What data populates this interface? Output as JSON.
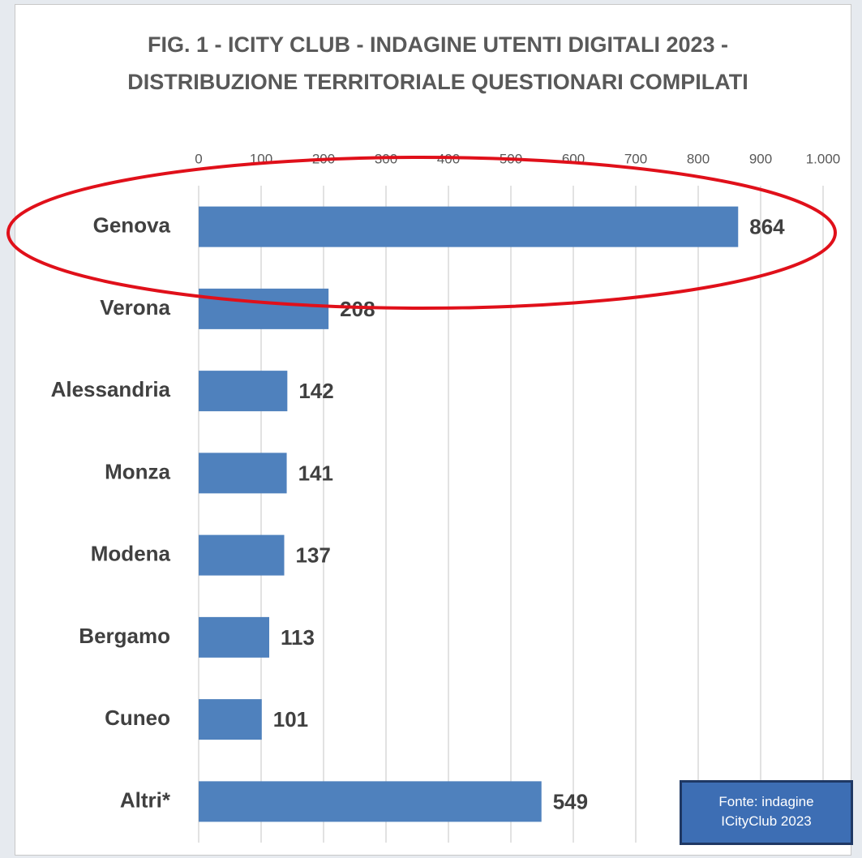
{
  "chart_data": {
    "type": "bar",
    "orientation": "horizontal",
    "title": "FIG. 1 - ICITY CLUB - INDAGINE UTENTI DIGITALI 2023 - DISTRIBUZIONE TERRITORIALE QUESTIONARI COMPILATI",
    "categories": [
      "Genova",
      "Verona",
      "Alessandria",
      "Monza",
      "Modena",
      "Bergamo",
      "Cuneo",
      "Altri*"
    ],
    "values": [
      864,
      208,
      142,
      141,
      137,
      113,
      101,
      549
    ],
    "color": "#4f81bd",
    "xlim": [
      0,
      1000
    ],
    "xticks": [
      0,
      100,
      200,
      300,
      400,
      500,
      600,
      700,
      800,
      900,
      {
        "value": 1000,
        "label": "1.000"
      }
    ],
    "grid": true,
    "annotation": "Fonte: indagine ICityClub 2023"
  }
}
